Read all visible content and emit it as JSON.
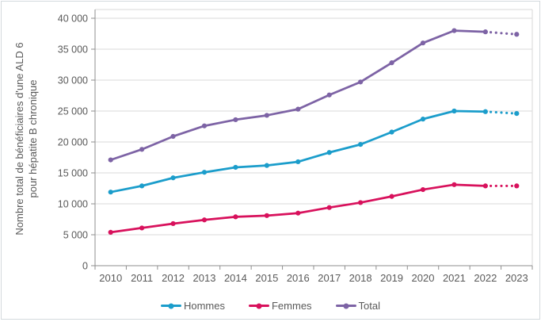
{
  "chart_data": {
    "type": "line",
    "title": "",
    "xlabel": "",
    "ylabel": "Nombre total de bénéficiaires d'une ALD 6 pour hépatite B chronique",
    "ylabel_lines": [
      "Nombre total de bénéficiaires d'une ALD 6",
      "pour hépatite B chronique"
    ],
    "categories": [
      "2010",
      "2011",
      "2012",
      "2013",
      "2014",
      "2015",
      "2016",
      "2017",
      "2018",
      "2019",
      "2020",
      "2021",
      "2022",
      "2023"
    ],
    "series": [
      {
        "name": "Hommes",
        "color": "#1b9dcb",
        "values": [
          11900,
          12900,
          14200,
          15100,
          15900,
          16200,
          16800,
          18300,
          19600,
          21600,
          23700,
          25000,
          24900,
          24600
        ]
      },
      {
        "name": "Femmes",
        "color": "#d8115c",
        "values": [
          5400,
          6100,
          6800,
          7400,
          7900,
          8100,
          8500,
          9400,
          10200,
          11200,
          12300,
          13100,
          12900,
          12900
        ]
      },
      {
        "name": "Total",
        "color": "#7d63a5",
        "values": [
          17100,
          18800,
          20900,
          22600,
          23600,
          24300,
          25300,
          27600,
          29700,
          32800,
          36000,
          38000,
          37800,
          37400
        ]
      }
    ],
    "ylim": [
      0,
      40000
    ],
    "ytick_step": 5000,
    "yticks_labels": [
      "0",
      "5 000",
      "10 000",
      "15 000",
      "20 000",
      "25 000",
      "30 000",
      "35 000",
      "40 000"
    ],
    "grid": "horizontal",
    "legend_position": "bottom",
    "last_segment_dotted": true,
    "styles": {
      "text_color": "#595959",
      "gridline_color": "#d9d9d9",
      "axis_color": "#8f8f8f",
      "figure_border_color": "#d4dade"
    }
  }
}
